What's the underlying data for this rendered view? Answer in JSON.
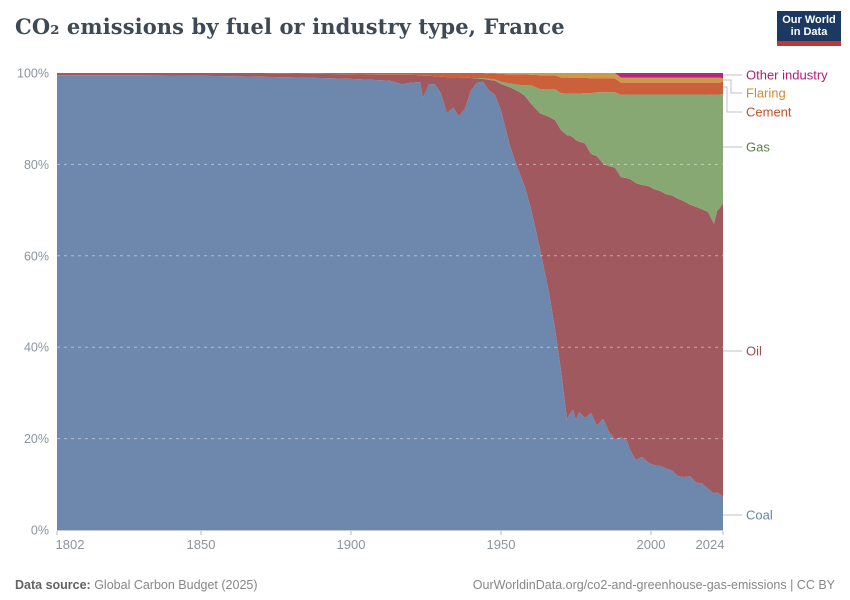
{
  "header": {
    "title": "CO₂ emissions by fuel or industry type, France",
    "logo_line1": "Our World",
    "logo_line2": "in Data"
  },
  "footer": {
    "source_label": "Data source:",
    "source_value": " Global Carbon Budget (2025)",
    "attribution": "OurWorldinData.org/co2-and-greenhouse-gas-emissions | CC BY"
  },
  "chart_data": {
    "type": "area",
    "stacking": "percent",
    "title": "CO₂ emissions by fuel or industry type, France",
    "xlabel": "",
    "ylabel": "",
    "xlim": [
      1802,
      2024
    ],
    "ylim": [
      0,
      100
    ],
    "grid": "dashed-horizontal",
    "legend_position": "right",
    "x_ticks": [
      1802,
      1850,
      1900,
      1950,
      2000,
      2024
    ],
    "x_tick_labels": [
      "1802",
      "1850",
      "1900",
      "1950",
      "2000",
      "2024"
    ],
    "y_ticks": [
      0,
      20,
      40,
      60,
      80,
      100
    ],
    "y_tick_labels": [
      "0%",
      "20%",
      "40%",
      "60%",
      "80%",
      "100%"
    ],
    "legend_order_top_to_bottom": [
      "other",
      "flaring",
      "cement",
      "gas",
      "oil",
      "coal"
    ],
    "years": [
      1802,
      1830,
      1850,
      1870,
      1890,
      1900,
      1910,
      1913,
      1917,
      1920,
      1923,
      1924,
      1926,
      1928,
      1930,
      1932,
      1934,
      1936,
      1938,
      1940,
      1942,
      1944,
      1946,
      1948,
      1950,
      1953,
      1956,
      1958,
      1960,
      1963,
      1966,
      1968,
      1970,
      1972,
      1973,
      1974,
      1975,
      1976,
      1978,
      1980,
      1982,
      1984,
      1986,
      1988,
      1990,
      1992,
      1993,
      1995,
      1997,
      1999,
      2001,
      2003,
      2005,
      2007,
      2009,
      2011,
      2013,
      2015,
      2017,
      2019,
      2021,
      2022,
      2023,
      2024
    ],
    "unit": "% of total CO₂ emissions",
    "series": [
      {
        "id": "coal",
        "name": "Coal",
        "color": "#6e88ad",
        "label_color": "#6584ab",
        "values": [
          99.5,
          99.5,
          99.4,
          99.2,
          98.9,
          98.7,
          98.4,
          98.3,
          97.5,
          97.9,
          98.0,
          94.6,
          97.6,
          97.5,
          95.5,
          91.2,
          92.4,
          90.6,
          92.2,
          96.2,
          97.9,
          98.1,
          96.2,
          95.2,
          91.8,
          84.0,
          78.4,
          75.0,
          70.3,
          61.5,
          52.0,
          44.0,
          35.0,
          24.2,
          25.5,
          26.3,
          24.0,
          25.8,
          24.5,
          25.6,
          22.8,
          24.3,
          21.5,
          19.8,
          20.3,
          19.5,
          17.5,
          15.3,
          16.0,
          14.8,
          14.2,
          14.0,
          13.5,
          13.0,
          11.8,
          11.6,
          11.8,
          10.4,
          10.2,
          9.0,
          8.0,
          8.3,
          7.8,
          7.3
        ]
      },
      {
        "id": "oil",
        "name": "Oil",
        "color": "#a0595e",
        "label_color": "#9c4f4f",
        "values": [
          0.5,
          0.5,
          0.6,
          0.8,
          0.9,
          1.0,
          1.2,
          1.3,
          2.1,
          1.7,
          1.5,
          4.8,
          1.8,
          1.8,
          3.7,
          7.9,
          6.7,
          8.4,
          6.8,
          2.7,
          0.9,
          0.6,
          2.3,
          3.1,
          5.8,
          12.9,
          17.5,
          20.0,
          23.0,
          29.7,
          38.4,
          45.7,
          52.5,
          62.2,
          60.8,
          59.6,
          61.3,
          59.2,
          60.1,
          56.7,
          59.0,
          55.9,
          58.1,
          59.5,
          56.9,
          57.5,
          59.3,
          60.6,
          59.5,
          60.5,
          60.4,
          60.2,
          60.0,
          60.2,
          60.7,
          60.3,
          59.4,
          60.3,
          60.0,
          60.6,
          59.0,
          61.5,
          62.7,
          64.3
        ]
      },
      {
        "id": "gas",
        "name": "Gas",
        "color": "#88a873",
        "label_color": "#5a7f4c",
        "values": [
          0,
          0,
          0,
          0,
          0,
          0,
          0,
          0,
          0,
          0,
          0,
          0,
          0,
          0,
          0,
          0,
          0,
          0,
          0,
          0,
          0.1,
          0.2,
          0.2,
          0.3,
          0.5,
          0.8,
          1.5,
          2.3,
          4.0,
          5.3,
          6.1,
          6.8,
          8.1,
          9.1,
          9.2,
          9.6,
          10.2,
          10.5,
          11.0,
          13.3,
          14.0,
          15.6,
          16.2,
          16.5,
          18.0,
          18.3,
          18.5,
          19.4,
          19.8,
          20.0,
          20.7,
          21.1,
          21.8,
          22.1,
          22.8,
          23.4,
          24.1,
          24.6,
          25.1,
          25.7,
          28.2,
          25.5,
          24.8,
          23.8
        ]
      },
      {
        "id": "cement",
        "name": "Cement",
        "color": "#cb603a",
        "label_color": "#c0512c",
        "values": [
          0,
          0,
          0,
          0,
          0.2,
          0.3,
          0.4,
          0.4,
          0.4,
          0.4,
          0.5,
          0.6,
          0.6,
          0.7,
          0.8,
          0.9,
          0.9,
          1.0,
          1.0,
          1.1,
          1.1,
          1.1,
          1.2,
          1.3,
          1.7,
          2.0,
          2.3,
          2.4,
          2.3,
          3.0,
          3.0,
          3.0,
          3.4,
          3.5,
          3.5,
          3.5,
          3.5,
          3.5,
          3.4,
          3.2,
          3.0,
          3.0,
          3.0,
          3.0,
          2.7,
          2.6,
          2.6,
          2.6,
          2.6,
          2.6,
          2.6,
          2.6,
          2.6,
          2.6,
          2.6,
          2.6,
          2.6,
          2.6,
          2.6,
          2.6,
          2.7,
          2.6,
          2.6,
          2.8
        ]
      },
      {
        "id": "flaring",
        "name": "Flaring",
        "color": "#d0984c",
        "label_color": "#d08c33",
        "values": [
          0,
          0,
          0,
          0,
          0,
          0,
          0,
          0,
          0,
          0,
          0,
          0,
          0,
          0,
          0,
          0,
          0,
          0,
          0,
          0,
          0,
          0,
          0.1,
          0.1,
          0.2,
          0.3,
          0.3,
          0.3,
          0.4,
          0.5,
          0.5,
          0.5,
          1.0,
          1.0,
          1.0,
          1.0,
          1.0,
          1.0,
          1.0,
          1.2,
          1.2,
          1.2,
          1.2,
          1.2,
          1.1,
          1.1,
          1.1,
          1.1,
          1.1,
          1.1,
          1.1,
          1.1,
          1.1,
          1.1,
          1.1,
          1.1,
          1.1,
          1.1,
          1.1,
          1.1,
          1.1,
          1.1,
          1.1,
          0.6
        ]
      },
      {
        "id": "other",
        "name": "Other industry",
        "color": "#b12a7d",
        "label_color": "#ac2072",
        "values": [
          0,
          0,
          0,
          0,
          0,
          0,
          0,
          0,
          0,
          0,
          0,
          0,
          0,
          0,
          0,
          0,
          0,
          0,
          0,
          0,
          0,
          0,
          0,
          0,
          0,
          0,
          0,
          0,
          0,
          0,
          0,
          0,
          0,
          0,
          0,
          0,
          0,
          0,
          0,
          0,
          0,
          0,
          0,
          0,
          1.0,
          1.0,
          1.0,
          1.0,
          1.0,
          1.0,
          1.0,
          1.0,
          1.0,
          1.0,
          1.0,
          1.0,
          1.0,
          1.0,
          1.0,
          1.0,
          1.0,
          1.0,
          1.0,
          1.2
        ]
      }
    ]
  }
}
